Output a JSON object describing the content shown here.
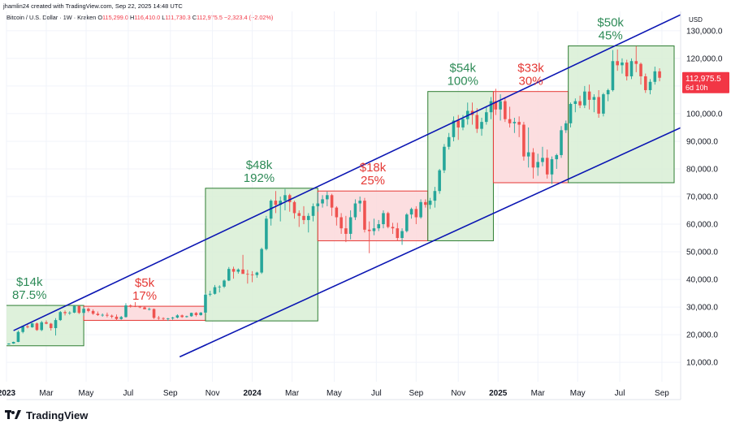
{
  "header": {
    "credit": "jhamlin24 created with TradingView.com, Sep 22, 2025 14:48 UTC",
    "symbol": "Bitcoin / U.S. Dollar · 1W · Kraken",
    "open_label": "O",
    "open": "115,299.0",
    "high_label": "H",
    "high": "116,410.0",
    "low_label": "L",
    "low": "111,730.3",
    "close_label": "C",
    "close": "112,975.5",
    "change": "−2,323.4 (−2.02%)"
  },
  "footer": {
    "brand": "TradingView"
  },
  "chart_data": {
    "type": "candlestick",
    "title": "Bitcoin / U.S. Dollar · 1W · Kraken",
    "currency": "USD",
    "y_range": [
      3000,
      137000
    ],
    "y_ticks": [
      {
        "value": 10000,
        "label": "10,000.0"
      },
      {
        "value": 20000,
        "label": "20,000.0"
      },
      {
        "value": 30000,
        "label": "30,000.0"
      },
      {
        "value": 40000,
        "label": "40,000.0"
      },
      {
        "value": 50000,
        "label": "50,000.0"
      },
      {
        "value": 60000,
        "label": "60,000.0"
      },
      {
        "value": 70000,
        "label": "70,000.0"
      },
      {
        "value": 80000,
        "label": "80,000.0"
      },
      {
        "value": 90000,
        "label": "90,000.0"
      },
      {
        "value": 100000,
        "label": "100,000.0"
      },
      {
        "value": 110000,
        "label": "110,000.0"
      },
      {
        "value": 120000,
        "label": "120,000.0"
      },
      {
        "value": 130000,
        "label": "130,000.0"
      }
    ],
    "x_range": [
      0,
      144
    ],
    "x_ticks": [
      {
        "t": 0,
        "label": "2023",
        "bold": true
      },
      {
        "t": 8.5,
        "label": "Mar",
        "bold": false
      },
      {
        "t": 17,
        "label": "May",
        "bold": false
      },
      {
        "t": 26,
        "label": "Jul",
        "bold": false
      },
      {
        "t": 35,
        "label": "Sep",
        "bold": false
      },
      {
        "t": 44,
        "label": "Nov",
        "bold": false
      },
      {
        "t": 52.5,
        "label": "2024",
        "bold": true
      },
      {
        "t": 61,
        "label": "Mar",
        "bold": false
      },
      {
        "t": 70,
        "label": "May",
        "bold": false
      },
      {
        "t": 79,
        "label": "Jul",
        "bold": false
      },
      {
        "t": 87.5,
        "label": "Sep",
        "bold": false
      },
      {
        "t": 96.5,
        "label": "Nov",
        "bold": false
      },
      {
        "t": 105,
        "label": "2025",
        "bold": true
      },
      {
        "t": 113.5,
        "label": "Mar",
        "bold": false
      },
      {
        "t": 122,
        "label": "May",
        "bold": false
      },
      {
        "t": 131,
        "label": "Jul",
        "bold": false
      },
      {
        "t": 140,
        "label": "Sep",
        "bold": false
      }
    ],
    "last_price": {
      "value": 112975.5,
      "label": "112,975.5",
      "countdown": "6d 10h"
    },
    "colors": {
      "up": "#26a69a",
      "down": "#ef5350",
      "channel": "#0b16b3",
      "box_up_fill": "#d8eed5",
      "box_up_stroke": "#2e7d32",
      "box_down_fill": "#fcd8db",
      "box_down_stroke": "#e53935"
    },
    "boxes": [
      {
        "t0": -1,
        "t1": 16.5,
        "low": 16000,
        "high": 30600,
        "kind": "up",
        "amount": "$14k",
        "pct": "87.5%"
      },
      {
        "t0": 16.5,
        "t1": 42.5,
        "low": 25200,
        "high": 30300,
        "kind": "down",
        "amount": "$5k",
        "pct": "17%"
      },
      {
        "t0": 42.5,
        "t1": 66.5,
        "low": 25000,
        "high": 73000,
        "kind": "up",
        "amount": "$48k",
        "pct": "192%"
      },
      {
        "t0": 66.5,
        "t1": 90,
        "low": 54000,
        "high": 72000,
        "kind": "down",
        "amount": "$18k",
        "pct": "25%"
      },
      {
        "t0": 90,
        "t1": 104,
        "low": 54000,
        "high": 108000,
        "kind": "up",
        "amount": "$54k",
        "pct": "100%"
      },
      {
        "t0": 104,
        "t1": 120,
        "low": 75000,
        "high": 108000,
        "kind": "down",
        "amount": "$33k",
        "pct": "30%"
      },
      {
        "t0": 120,
        "t1": 145,
        "low": 75000,
        "high": 124500,
        "kind": "up",
        "amount": "$50k",
        "pct": "45%"
      }
    ],
    "channel_lines": [
      {
        "name": "upper",
        "t0": 1.5,
        "v0": 21500,
        "t1": 145,
        "v1": 136600
      },
      {
        "name": "lower",
        "t0": 37,
        "v0": 12000,
        "t1": 148,
        "v1": 98000
      }
    ],
    "candles": [
      [
        16500,
        16900,
        16400,
        16800
      ],
      [
        16800,
        17500,
        16700,
        17400
      ],
      [
        17400,
        21500,
        17300,
        21000
      ],
      [
        21000,
        23200,
        20500,
        23000
      ],
      [
        23000,
        23800,
        22300,
        22700
      ],
      [
        22700,
        24300,
        22500,
        24100
      ],
      [
        24100,
        24400,
        21400,
        21700
      ],
      [
        21700,
        25000,
        21300,
        24500
      ],
      [
        24500,
        25200,
        23800,
        24000
      ],
      [
        24000,
        24300,
        21500,
        22400
      ],
      [
        22400,
        26000,
        19700,
        25300
      ],
      [
        25300,
        28600,
        25000,
        28200
      ],
      [
        28200,
        28800,
        27000,
        27800
      ],
      [
        27800,
        28500,
        27200,
        28000
      ],
      [
        28000,
        30500,
        27800,
        30400
      ],
      [
        30400,
        30600,
        27500,
        27900
      ],
      [
        27900,
        30000,
        26800,
        29400
      ],
      [
        29400,
        29800,
        28100,
        28600
      ],
      [
        28600,
        29200,
        27200,
        27600
      ],
      [
        27600,
        28400,
        26800,
        27100
      ],
      [
        27100,
        27700,
        26500,
        27200
      ],
      [
        27200,
        28000,
        26300,
        26900
      ],
      [
        26900,
        27300,
        25900,
        26500
      ],
      [
        26500,
        27300,
        25200,
        25700
      ],
      [
        25700,
        26800,
        25400,
        26400
      ],
      [
        26400,
        31400,
        26200,
        30600
      ],
      [
        30600,
        31000,
        29800,
        30300
      ],
      [
        30300,
        31800,
        30000,
        30200
      ],
      [
        30200,
        30500,
        29600,
        29900
      ],
      [
        29900,
        30300,
        29400,
        29200
      ],
      [
        29200,
        29800,
        28800,
        29300
      ],
      [
        29300,
        29500,
        25700,
        26100
      ],
      [
        26100,
        26800,
        25400,
        26000
      ],
      [
        26000,
        26300,
        25300,
        25800
      ],
      [
        25800,
        26100,
        25000,
        25900
      ],
      [
        25900,
        26500,
        25400,
        26200
      ],
      [
        26200,
        27400,
        25900,
        27000
      ],
      [
        27000,
        27300,
        26100,
        26400
      ],
      [
        26400,
        26900,
        26200,
        26700
      ],
      [
        26700,
        28000,
        26500,
        27900
      ],
      [
        27900,
        28200,
        26600,
        27100
      ],
      [
        27100,
        28200,
        26900,
        28000
      ],
      [
        28000,
        35000,
        27800,
        34500
      ],
      [
        34500,
        35900,
        33900,
        34800
      ],
      [
        34800,
        38000,
        34500,
        37200
      ],
      [
        37200,
        37900,
        35300,
        37400
      ],
      [
        37400,
        40000,
        36900,
        39600
      ],
      [
        39600,
        44500,
        39400,
        43800
      ],
      [
        43800,
        44600,
        40300,
        42800
      ],
      [
        42800,
        44000,
        42100,
        43600
      ],
      [
        43600,
        48900,
        42200,
        42000
      ],
      [
        42000,
        43500,
        38500,
        41800
      ],
      [
        41800,
        43000,
        39000,
        41600
      ],
      [
        41600,
        42800,
        40600,
        42500
      ],
      [
        42500,
        51500,
        42000,
        51000
      ],
      [
        51000,
        63000,
        50500,
        62000
      ],
      [
        62000,
        69000,
        59500,
        68500
      ],
      [
        68500,
        72000,
        64000,
        67000
      ],
      [
        67000,
        70000,
        61000,
        68500
      ],
      [
        68500,
        72700,
        65000,
        70500
      ],
      [
        70500,
        71000,
        64500,
        68000
      ],
      [
        68000,
        68500,
        62000,
        64000
      ],
      [
        64000,
        65000,
        59000,
        63000
      ],
      [
        63000,
        66500,
        60000,
        61500
      ],
      [
        61500,
        64000,
        57000,
        63000
      ],
      [
        63000,
        67500,
        61000,
        66500
      ],
      [
        66500,
        71500,
        64500,
        67500
      ],
      [
        67500,
        70500,
        66000,
        69000
      ],
      [
        69000,
        71800,
        66500,
        70500
      ],
      [
        70500,
        71000,
        63000,
        66000
      ],
      [
        66000,
        66500,
        59500,
        62500
      ],
      [
        62500,
        64000,
        56500,
        58500
      ],
      [
        58500,
        63000,
        53500,
        56500
      ],
      [
        56500,
        65000,
        54500,
        62500
      ],
      [
        62500,
        69000,
        61500,
        67500
      ],
      [
        67500,
        70000,
        64500,
        68500
      ],
      [
        68500,
        69500,
        57000,
        58000
      ],
      [
        58000,
        61000,
        49500,
        57500
      ],
      [
        57500,
        62000,
        56000,
        58500
      ],
      [
        58500,
        61500,
        57500,
        60000
      ],
      [
        60000,
        65000,
        58500,
        64000
      ],
      [
        64000,
        64500,
        58500,
        59000
      ],
      [
        59000,
        60500,
        56500,
        58500
      ],
      [
        58500,
        60500,
        54000,
        55000
      ],
      [
        55000,
        58500,
        52500,
        57500
      ],
      [
        57500,
        64000,
        57000,
        63500
      ],
      [
        63500,
        66000,
        62000,
        65500
      ],
      [
        65500,
        66500,
        60000,
        62500
      ],
      [
        62500,
        69000,
        62000,
        68000
      ],
      [
        68000,
        69000,
        66000,
        67000
      ],
      [
        67000,
        69500,
        65500,
        68500
      ],
      [
        68500,
        73500,
        66000,
        72000
      ],
      [
        72000,
        80000,
        71000,
        79500
      ],
      [
        79500,
        89000,
        78500,
        88000
      ],
      [
        88000,
        93000,
        87000,
        91500
      ],
      [
        91500,
        99000,
        90000,
        97500
      ],
      [
        97500,
        99500,
        90500,
        95000
      ],
      [
        95000,
        99500,
        94000,
        98000
      ],
      [
        98000,
        104000,
        96000,
        101000
      ],
      [
        101000,
        104000,
        96000,
        99500
      ],
      [
        99500,
        102000,
        93000,
        94500
      ],
      [
        94500,
        98500,
        92000,
        97000
      ],
      [
        97000,
        102500,
        96000,
        100500
      ],
      [
        100500,
        106000,
        98000,
        104500
      ],
      [
        104500,
        109000,
        99500,
        101500
      ],
      [
        101500,
        107000,
        97500,
        104500
      ],
      [
        104500,
        106000,
        97000,
        98000
      ],
      [
        98000,
        102500,
        95000,
        96500
      ],
      [
        96500,
        98500,
        93000,
        97000
      ],
      [
        97000,
        99000,
        91500,
        96000
      ],
      [
        96000,
        97000,
        83000,
        84500
      ],
      [
        84500,
        95000,
        80500,
        86000
      ],
      [
        86000,
        87500,
        76500,
        80500
      ],
      [
        80500,
        85500,
        77500,
        82500
      ],
      [
        82500,
        88000,
        81000,
        84000
      ],
      [
        84000,
        87000,
        76500,
        78000
      ],
      [
        78000,
        84500,
        74500,
        83500
      ],
      [
        83500,
        85500,
        80000,
        85000
      ],
      [
        85000,
        95500,
        84000,
        94000
      ],
      [
        94000,
        97500,
        93000,
        96500
      ],
      [
        96500,
        104000,
        95000,
        103500
      ],
      [
        103500,
        105500,
        100500,
        104500
      ],
      [
        104500,
        106500,
        102000,
        103000
      ],
      [
        103000,
        110000,
        102000,
        108000
      ],
      [
        108000,
        110500,
        101500,
        105000
      ],
      [
        105000,
        107000,
        100500,
        106000
      ],
      [
        106000,
        108500,
        98500,
        100000
      ],
      [
        100000,
        107500,
        99000,
        107000
      ],
      [
        107000,
        109000,
        104500,
        108500
      ],
      [
        108500,
        123000,
        108000,
        119000
      ],
      [
        119000,
        123200,
        115500,
        117500
      ],
      [
        117500,
        120000,
        114500,
        118500
      ],
      [
        118500,
        119500,
        112000,
        113500
      ],
      [
        113500,
        120000,
        112500,
        119000
      ],
      [
        119000,
        124400,
        115000,
        118000
      ],
      [
        118000,
        118500,
        110500,
        113500
      ],
      [
        113500,
        114500,
        107500,
        108500
      ],
      [
        108500,
        112500,
        107000,
        111500
      ],
      [
        111500,
        117000,
        110500,
        115300
      ],
      [
        115300,
        116400,
        111700,
        112975
      ]
    ]
  }
}
